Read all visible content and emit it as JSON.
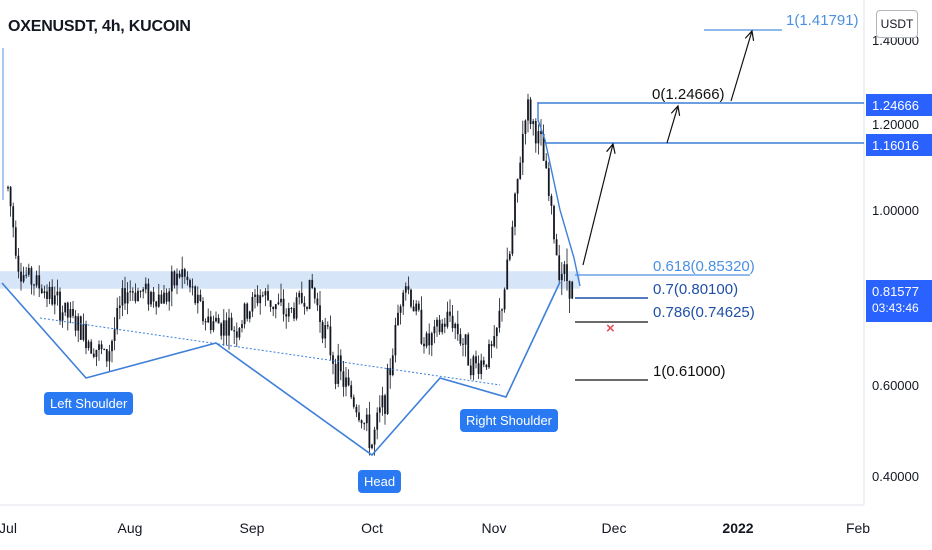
{
  "header": {
    "title": "OXENUSDT, 4h, KUCOIN",
    "currency_label": "USDT"
  },
  "price_tags": {
    "target_top": "1.24666",
    "target_mid": "1.16016",
    "last_price": "0.81577",
    "countdown": "03:43:46"
  },
  "callouts": {
    "left_shoulder": "Left Shoulder",
    "head": "Head",
    "right_shoulder": "Right Shoulder"
  },
  "fib_labels": {
    "ext_1": "1(1.41791)",
    "ext_0": "0(1.24666)",
    "r618": "0.618(0.85320)",
    "r70": "0.7(0.80100)",
    "r786": "0.786(0.74625)",
    "r1": "1(0.61000)"
  },
  "colors": {
    "accent": "#2962ff",
    "candle": "#131722",
    "pattern_line": "#3d7fd9",
    "zone": "#c9dcf7",
    "invalidation": "#e8505b"
  },
  "chart_data": {
    "type": "candlestick",
    "title": "OXENUSDT, 4h, KUCOIN",
    "x_ticks": [
      "Jul",
      "Aug",
      "Sep",
      "Oct",
      "Nov",
      "Dec",
      "2022",
      "Feb"
    ],
    "y_ticks": [
      "0.40000",
      "0.60000",
      "1.00000",
      "1.20000",
      "1.40000"
    ],
    "ylim": [
      0.33,
      1.5
    ],
    "price_path": [
      {
        "date": "Jul 1",
        "price": 1.05
      },
      {
        "date": "Jul 4",
        "price": 0.86
      },
      {
        "date": "Jul 10",
        "price": 0.82
      },
      {
        "date": "Jul 18",
        "price": 0.74
      },
      {
        "date": "Jul 26",
        "price": 0.66
      },
      {
        "date": "Jul 31",
        "price": 0.82
      },
      {
        "date": "Aug 10",
        "price": 0.8
      },
      {
        "date": "Aug 14",
        "price": 0.86
      },
      {
        "date": "Aug 20",
        "price": 0.75
      },
      {
        "date": "Aug 28",
        "price": 0.73
      },
      {
        "date": "Sep 3",
        "price": 0.81
      },
      {
        "date": "Sep 10",
        "price": 0.76
      },
      {
        "date": "Sep 16",
        "price": 0.82
      },
      {
        "date": "Sep 22",
        "price": 0.64
      },
      {
        "date": "Sep 28",
        "price": 0.54
      },
      {
        "date": "Oct 1",
        "price": 0.47
      },
      {
        "date": "Oct 5",
        "price": 0.6
      },
      {
        "date": "Oct 9",
        "price": 0.85
      },
      {
        "date": "Oct 15",
        "price": 0.69
      },
      {
        "date": "Oct 21",
        "price": 0.76
      },
      {
        "date": "Oct 27",
        "price": 0.64
      },
      {
        "date": "Nov 1",
        "price": 0.68
      },
      {
        "date": "Nov 5",
        "price": 0.9
      },
      {
        "date": "Nov 9",
        "price": 1.24666
      },
      {
        "date": "Nov 13",
        "price": 1.14
      },
      {
        "date": "Nov 17",
        "price": 0.88
      },
      {
        "date": "Nov 21",
        "price": 0.81577
      }
    ],
    "levels": [
      {
        "label": "1(1.41791)",
        "value": 1.41791
      },
      {
        "label": "0(1.24666)",
        "value": 1.24666
      },
      {
        "label": "1.16016",
        "value": 1.16016
      },
      {
        "label": "0.618(0.85320)",
        "value": 0.8532
      },
      {
        "label": "0.7(0.80100)",
        "value": 0.801
      },
      {
        "label": "0.786(0.74625)",
        "value": 0.74625
      },
      {
        "label": "1(0.61000)",
        "value": 0.61
      }
    ],
    "resistance_zone": [
      0.82,
      0.86
    ],
    "annotations": [
      "Left Shoulder",
      "Head",
      "Right Shoulder"
    ],
    "last_price": 0.81577
  }
}
